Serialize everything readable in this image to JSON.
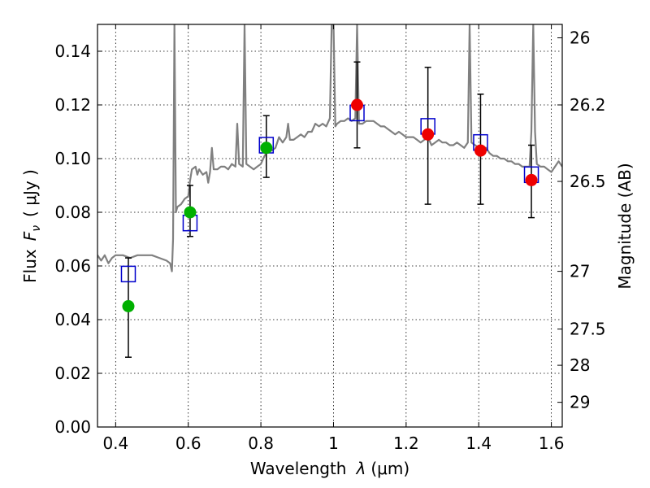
{
  "chart_data": {
    "type": "scatter",
    "xlabel_text": "Wavelength",
    "xlabel_symbol": "λ",
    "xlabel_unit": "(μm)",
    "ylabel_text": "Flux",
    "ylabel_symbol": "F",
    "ylabel_subscript": "ν",
    "ylabel_unit": "( μJy )",
    "ylabel_right": "Magnitude (AB)",
    "xlim": [
      0.35,
      1.63
    ],
    "ylim": [
      0.0,
      0.15
    ],
    "grid": true,
    "x_ticks": [
      {
        "value": 0.4,
        "label": "0.4"
      },
      {
        "value": 0.6,
        "label": "0.6"
      },
      {
        "value": 0.8,
        "label": "0.8"
      },
      {
        "value": 1.0,
        "label": "1"
      },
      {
        "value": 1.2,
        "label": "1.2"
      },
      {
        "value": 1.4,
        "label": "1.4"
      },
      {
        "value": 1.6,
        "label": "1.6"
      }
    ],
    "y_ticks": [
      {
        "value": 0.0,
        "label": "0.00"
      },
      {
        "value": 0.02,
        "label": "0.02"
      },
      {
        "value": 0.04,
        "label": "0.04"
      },
      {
        "value": 0.06,
        "label": "0.06"
      },
      {
        "value": 0.08,
        "label": "0.08"
      },
      {
        "value": 0.1,
        "label": "0.10"
      },
      {
        "value": 0.12,
        "label": "0.12"
      },
      {
        "value": 0.14,
        "label": "0.14"
      }
    ],
    "right_ticks": [
      {
        "label": "26",
        "flux": 0.145
      },
      {
        "label": "26.2",
        "flux": 0.12
      },
      {
        "label": "26.5",
        "flux": 0.0915
      },
      {
        "label": "27",
        "flux": 0.058
      },
      {
        "label": "27.5",
        "flux": 0.0365
      },
      {
        "label": "28",
        "flux": 0.023
      },
      {
        "label": "29",
        "flux": 0.0092
      }
    ],
    "model_spectrum": {
      "color": "#808080",
      "points": [
        [
          0.35,
          0.064
        ],
        [
          0.36,
          0.062
        ],
        [
          0.37,
          0.064
        ],
        [
          0.38,
          0.061
        ],
        [
          0.39,
          0.063
        ],
        [
          0.4,
          0.064
        ],
        [
          0.42,
          0.064
        ],
        [
          0.44,
          0.063
        ],
        [
          0.46,
          0.064
        ],
        [
          0.48,
          0.064
        ],
        [
          0.5,
          0.064
        ],
        [
          0.52,
          0.063
        ],
        [
          0.54,
          0.062
        ],
        [
          0.55,
          0.061
        ],
        [
          0.555,
          0.058
        ],
        [
          0.558,
          0.07
        ],
        [
          0.562,
          0.15
        ],
        [
          0.566,
          0.08
        ],
        [
          0.57,
          0.082
        ],
        [
          0.58,
          0.083
        ],
        [
          0.59,
          0.085
        ],
        [
          0.6,
          0.086
        ],
        [
          0.605,
          0.092
        ],
        [
          0.61,
          0.096
        ],
        [
          0.62,
          0.097
        ],
        [
          0.625,
          0.094
        ],
        [
          0.63,
          0.096
        ],
        [
          0.64,
          0.094
        ],
        [
          0.65,
          0.095
        ],
        [
          0.655,
          0.091
        ],
        [
          0.66,
          0.095
        ],
        [
          0.665,
          0.104
        ],
        [
          0.67,
          0.096
        ],
        [
          0.68,
          0.096
        ],
        [
          0.69,
          0.097
        ],
        [
          0.7,
          0.097
        ],
        [
          0.71,
          0.096
        ],
        [
          0.72,
          0.098
        ],
        [
          0.73,
          0.097
        ],
        [
          0.735,
          0.113
        ],
        [
          0.74,
          0.098
        ],
        [
          0.75,
          0.097
        ],
        [
          0.755,
          0.15
        ],
        [
          0.76,
          0.098
        ],
        [
          0.77,
          0.097
        ],
        [
          0.78,
          0.096
        ],
        [
          0.79,
          0.097
        ],
        [
          0.8,
          0.098
        ],
        [
          0.81,
          0.101
        ],
        [
          0.82,
          0.103
        ],
        [
          0.83,
          0.103
        ],
        [
          0.84,
          0.104
        ],
        [
          0.85,
          0.108
        ],
        [
          0.86,
          0.106
        ],
        [
          0.87,
          0.108
        ],
        [
          0.875,
          0.113
        ],
        [
          0.88,
          0.107
        ],
        [
          0.89,
          0.107
        ],
        [
          0.9,
          0.108
        ],
        [
          0.91,
          0.109
        ],
        [
          0.92,
          0.108
        ],
        [
          0.93,
          0.11
        ],
        [
          0.94,
          0.11
        ],
        [
          0.95,
          0.113
        ],
        [
          0.96,
          0.112
        ],
        [
          0.97,
          0.113
        ],
        [
          0.98,
          0.112
        ],
        [
          0.99,
          0.115
        ],
        [
          0.995,
          0.15
        ],
        [
          1.0,
          0.15
        ],
        [
          1.005,
          0.112
        ],
        [
          1.01,
          0.113
        ],
        [
          1.02,
          0.114
        ],
        [
          1.03,
          0.114
        ],
        [
          1.04,
          0.115
        ],
        [
          1.05,
          0.114
        ],
        [
          1.06,
          0.115
        ],
        [
          1.065,
          0.15
        ],
        [
          1.07,
          0.113
        ],
        [
          1.08,
          0.113
        ],
        [
          1.09,
          0.114
        ],
        [
          1.1,
          0.114
        ],
        [
          1.11,
          0.114
        ],
        [
          1.12,
          0.113
        ],
        [
          1.13,
          0.112
        ],
        [
          1.14,
          0.112
        ],
        [
          1.15,
          0.111
        ],
        [
          1.16,
          0.11
        ],
        [
          1.17,
          0.109
        ],
        [
          1.18,
          0.11
        ],
        [
          1.19,
          0.109
        ],
        [
          1.2,
          0.108
        ],
        [
          1.21,
          0.108
        ],
        [
          1.22,
          0.108
        ],
        [
          1.23,
          0.107
        ],
        [
          1.24,
          0.106
        ],
        [
          1.25,
          0.107
        ],
        [
          1.26,
          0.108
        ],
        [
          1.27,
          0.105
        ],
        [
          1.28,
          0.106
        ],
        [
          1.29,
          0.107
        ],
        [
          1.3,
          0.106
        ],
        [
          1.31,
          0.106
        ],
        [
          1.32,
          0.105
        ],
        [
          1.33,
          0.105
        ],
        [
          1.34,
          0.106
        ],
        [
          1.35,
          0.105
        ],
        [
          1.36,
          0.104
        ],
        [
          1.37,
          0.106
        ],
        [
          1.375,
          0.15
        ],
        [
          1.38,
          0.106
        ],
        [
          1.39,
          0.105
        ],
        [
          1.4,
          0.104
        ],
        [
          1.41,
          0.103
        ],
        [
          1.42,
          0.104
        ],
        [
          1.43,
          0.102
        ],
        [
          1.44,
          0.101
        ],
        [
          1.45,
          0.101
        ],
        [
          1.46,
          0.1
        ],
        [
          1.47,
          0.1
        ],
        [
          1.48,
          0.099
        ],
        [
          1.49,
          0.099
        ],
        [
          1.5,
          0.098
        ],
        [
          1.51,
          0.098
        ],
        [
          1.52,
          0.097
        ],
        [
          1.53,
          0.097
        ],
        [
          1.54,
          0.097
        ],
        [
          1.545,
          0.11
        ],
        [
          1.55,
          0.15
        ],
        [
          1.555,
          0.11
        ],
        [
          1.56,
          0.098
        ],
        [
          1.57,
          0.097
        ],
        [
          1.58,
          0.097
        ],
        [
          1.59,
          0.096
        ],
        [
          1.6,
          0.095
        ],
        [
          1.61,
          0.097
        ],
        [
          1.62,
          0.099
        ],
        [
          1.63,
          0.097
        ]
      ]
    },
    "model_boxes": {
      "color": "#0000cc",
      "x": [
        0.435,
        0.605,
        0.815,
        1.065,
        1.26,
        1.405,
        1.545
      ],
      "y": [
        0.057,
        0.076,
        0.105,
        0.117,
        0.112,
        0.106,
        0.094
      ]
    },
    "points_green": {
      "color": "#00b000",
      "x": [
        0.435,
        0.605,
        0.815
      ],
      "y": [
        0.045,
        0.08,
        0.104
      ],
      "yerr_low": [
        0.026,
        0.071,
        0.093
      ],
      "yerr_high": [
        0.063,
        0.09,
        0.116
      ]
    },
    "points_red": {
      "color": "#ee0000",
      "x": [
        1.065,
        1.26,
        1.405,
        1.545
      ],
      "y": [
        0.12,
        0.109,
        0.103,
        0.092
      ],
      "yerr_low": [
        0.104,
        0.083,
        0.083,
        0.078
      ],
      "yerr_high": [
        0.136,
        0.134,
        0.124,
        0.105
      ]
    }
  }
}
